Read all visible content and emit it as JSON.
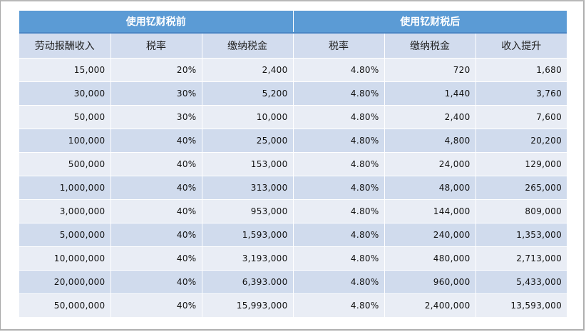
{
  "table": {
    "groups": [
      "使用钇财税前",
      "使用钇财税后"
    ],
    "headers": [
      "劳动报酬收入",
      "税率",
      "缴纳税金",
      "税率",
      "缴纳税金",
      "收入提升"
    ],
    "rows": [
      [
        "15,000",
        "20%",
        "2,400",
        "4.80%",
        "720",
        "1,680"
      ],
      [
        "30,000",
        "30%",
        "5,200",
        "4.80%",
        "1,440",
        "3,760"
      ],
      [
        "50,000",
        "30%",
        "10,000",
        "4.80%",
        "2,400",
        "7,600"
      ],
      [
        "100,000",
        "40%",
        "25,000",
        "4.80%",
        "4,800",
        "20,200"
      ],
      [
        "500,000",
        "40%",
        "153,000",
        "4.80%",
        "24,000",
        "129,000"
      ],
      [
        "1,000,000",
        "40%",
        "313,000",
        "4.80%",
        "48,000",
        "265,000"
      ],
      [
        "3,000,000",
        "40%",
        "953,000",
        "4.80%",
        "144,000",
        "809,000"
      ],
      [
        "5,000,000",
        "40%",
        "1,593,000",
        "4.80%",
        "240,000",
        "1,353,000"
      ],
      [
        "10,000,000",
        "40%",
        "3,193,000",
        "4.80%",
        "480,000",
        "2,713,000"
      ],
      [
        "20,000,000",
        "40%",
        "6,393.000",
        "4.80%",
        "960,000",
        "5,433,000"
      ],
      [
        "50,000,000",
        "40%",
        "15,993,000",
        "4.80%",
        "2,400,000",
        "13,593,000"
      ]
    ]
  },
  "colors": {
    "group_header_bg": "#5b9bd5",
    "subheader_bg": "#d2dcee",
    "row_light": "#e9edf5",
    "row_dark": "#d0dbed"
  }
}
